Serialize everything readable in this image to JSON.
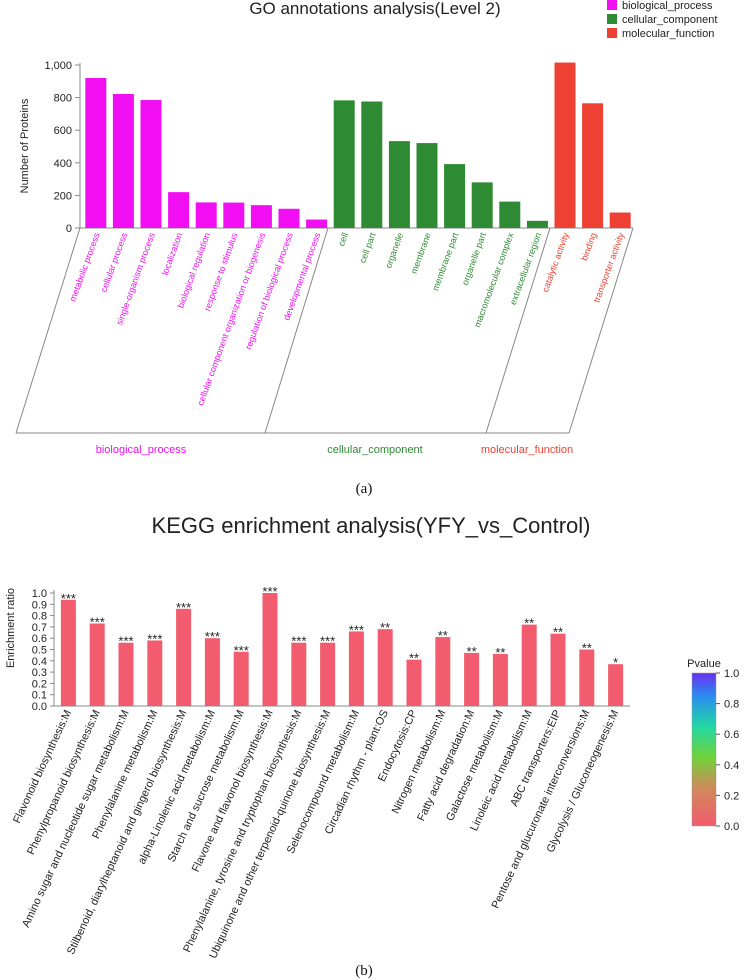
{
  "figure_labels": {
    "a": "(a)",
    "b": "(b)"
  },
  "chart_data": [
    {
      "type": "bar",
      "title": "GO annotations analysis(Level 2)",
      "ylabel": "Number of Proteins",
      "xlabel": "",
      "ylim": [
        0,
        1000
      ],
      "yticks": [
        0,
        200,
        400,
        600,
        800,
        1000
      ],
      "ytick_labels": [
        "0",
        "200",
        "400",
        "600",
        "800",
        "1,000"
      ],
      "legend": {
        "placement": "top-right",
        "entries": [
          "biological_process",
          "cellular_component",
          "molecular_function"
        ]
      },
      "colors": {
        "biological_process": "#f20ef2",
        "cellular_component": "#2e8b34",
        "molecular_function": "#ee4133"
      },
      "group_labels": [
        "biological_process",
        "cellular_component",
        "molecular_function"
      ],
      "categories": [
        "metabolic process",
        "cellular process",
        "single-organism process",
        "localization",
        "biological regulation",
        "response to stimulus",
        "cellular component organization or biogenesis",
        "regulation of biological process",
        "developmental process",
        "cell",
        "cell part",
        "organelle",
        "membrane",
        "membrane part",
        "organelle part",
        "macromolecular complex",
        "extracellular region",
        "catalytic activity",
        "binding",
        "transporter activity"
      ],
      "groups": [
        "biological_process",
        "biological_process",
        "biological_process",
        "biological_process",
        "biological_process",
        "biological_process",
        "biological_process",
        "biological_process",
        "biological_process",
        "cellular_component",
        "cellular_component",
        "cellular_component",
        "cellular_component",
        "cellular_component",
        "cellular_component",
        "cellular_component",
        "cellular_component",
        "molecular_function",
        "molecular_function",
        "molecular_function"
      ],
      "values": [
        920,
        822,
        785,
        220,
        157,
        156,
        140,
        118,
        52,
        783,
        776,
        533,
        521,
        392,
        280,
        162,
        44,
        1015,
        765,
        95
      ]
    },
    {
      "type": "bar",
      "title": "KEGG enrichment analysis(YFY_vs_Control)",
      "ylabel": "Enrichment ratio",
      "xlabel": "",
      "ylim": [
        0,
        1.0
      ],
      "yticks": [
        0,
        0.1,
        0.2,
        0.3,
        0.4,
        0.5,
        0.6,
        0.7,
        0.8,
        0.9,
        1.0
      ],
      "ytick_labels": [
        "0.0",
        "0.1",
        "0.2",
        "0.3",
        "0.4",
        "0.5",
        "0.6",
        "0.7",
        "0.8",
        "0.9",
        "1.0"
      ],
      "bar_color": "#f25c6e",
      "categories": [
        "Flavonoid biosynthesis:M",
        "Phenylpropanoid biosynthesis:M",
        "Amino sugar and nucleotide sugar metabolism:M",
        "Phenylalanine metabolism:M",
        "Stilbenoid, diarylheptanoid and gingerol biosynthesis:M",
        "alpha-Linolenic acid metabolism:M",
        "Starch and sucrose metabolism:M",
        "Flavone and flavonol biosynthesis:M",
        "Phenylalanine, tyrosine and tryptophan biosynthesis:M",
        "Ubiquinone and other terpenoid-quinone biosynthesis:M",
        "Selenocompound metabolism:M",
        "Circadian rhythm - plant:OS",
        "Endocytosis:CP",
        "Nitrogen metabolism:M",
        "Fatty acid degradation:M",
        "Galactose metabolism:M",
        "Linoleic acid metabolism:M",
        "ABC transporters:EIP",
        "Pentose and glucuronate interconversions:M",
        "Glycolysis / Gluconeogenesis:M"
      ],
      "values": [
        0.94,
        0.73,
        0.56,
        0.58,
        0.86,
        0.6,
        0.48,
        1.0,
        0.56,
        0.56,
        0.66,
        0.68,
        0.41,
        0.61,
        0.47,
        0.46,
        0.72,
        0.64,
        0.5,
        0.37
      ],
      "significance": [
        "***",
        "***",
        "***",
        "***",
        "***",
        "***",
        "***",
        "***",
        "***",
        "***",
        "***",
        "**",
        "**",
        "**",
        "**",
        "**",
        "**",
        "**",
        "**",
        "*"
      ],
      "colorbar": {
        "title": "Pvalue",
        "min": 0.0,
        "max": 1.0,
        "ticks": [
          "0.0",
          "0.2",
          "0.4",
          "0.6",
          "0.8",
          "1.0"
        ]
      }
    }
  ]
}
